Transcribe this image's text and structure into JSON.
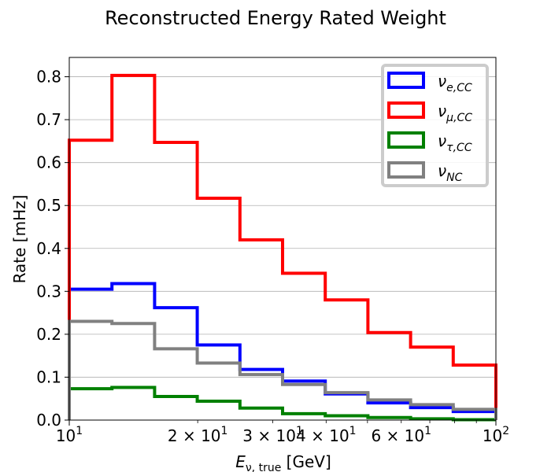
{
  "chart_data": {
    "type": "step",
    "title": "Reconstructed Energy Rated Weight",
    "xlabel": {
      "main": "E",
      "sub": "ν, true",
      "unit": " [GeV]"
    },
    "ylabel": "Rate [mHz]",
    "x_scale": "log",
    "xlim": [
      10,
      100
    ],
    "ylim": [
      0,
      0.845
    ],
    "grid": "y-major",
    "legend_position": "top-right",
    "x_ticks": [
      {
        "value": 10,
        "base": "10",
        "exp": "1",
        "mult": ""
      },
      {
        "value": 20,
        "base": "10",
        "exp": "1",
        "mult": "2 × "
      },
      {
        "value": 30,
        "base": "10",
        "exp": "1",
        "mult": "3 × "
      },
      {
        "value": 40,
        "base": "10",
        "exp": "1",
        "mult": "4 × "
      },
      {
        "value": 60,
        "base": "10",
        "exp": "1",
        "mult": "6 × "
      },
      {
        "value": 100,
        "base": "10",
        "exp": "2",
        "mult": ""
      }
    ],
    "y_ticks": [
      "0.0",
      "0.1",
      "0.2",
      "0.3",
      "0.4",
      "0.5",
      "0.6",
      "0.7",
      "0.8"
    ],
    "bin_edges": [
      10,
      12.59,
      15.85,
      19.95,
      25.12,
      31.62,
      39.81,
      50.12,
      63.1,
      79.43,
      100
    ],
    "series": [
      {
        "name": "ν_{e,CC}",
        "label_main": "ν",
        "label_sub": "e,CC",
        "color": "#0000ff",
        "values": [
          0.305,
          0.318,
          0.262,
          0.175,
          0.118,
          0.091,
          0.061,
          0.04,
          0.029,
          0.02
        ]
      },
      {
        "name": "ν_{μ,CC}",
        "label_main": "ν",
        "label_sub": "μ,CC",
        "color": "#ff0000",
        "values": [
          0.652,
          0.803,
          0.647,
          0.517,
          0.42,
          0.342,
          0.28,
          0.204,
          0.17,
          0.128
        ]
      },
      {
        "name": "ν_{τ,CC}",
        "label_main": "ν",
        "label_sub": "τ,CC",
        "color": "#008000",
        "values": [
          0.073,
          0.076,
          0.055,
          0.044,
          0.028,
          0.015,
          0.01,
          0.006,
          0.003,
          0.001
        ]
      },
      {
        "name": "ν_{NC}",
        "label_main": "ν",
        "label_sub": "NC",
        "color": "#808080",
        "values": [
          0.23,
          0.225,
          0.166,
          0.133,
          0.106,
          0.083,
          0.064,
          0.047,
          0.036,
          0.025
        ]
      }
    ]
  }
}
